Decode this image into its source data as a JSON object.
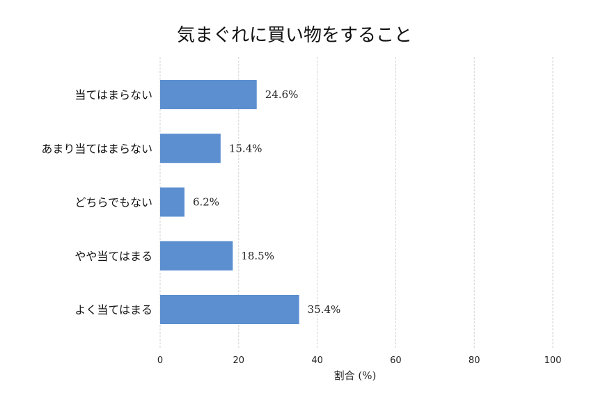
{
  "chart_data": {
    "type": "bar",
    "orientation": "horizontal",
    "title": "気まぐれに買い物をすること",
    "xlabel": "割合 (%)",
    "ylabel": "",
    "categories": [
      "よく当てはまる",
      "やや当てはまる",
      "どちらでもない",
      "あまり当てはまらない",
      "当てはまらない"
    ],
    "values": [
      35.4,
      18.5,
      6.2,
      15.4,
      24.6
    ],
    "value_labels": [
      "35.4%",
      "18.5%",
      "6.2%",
      "15.4%",
      "24.6%"
    ],
    "xlim": [
      0,
      100
    ],
    "xticks": [
      0,
      20,
      40,
      60,
      80,
      100
    ],
    "grid": "vertical-dashed",
    "bar_color": "#5b8fd0",
    "grid_color": "#c8c8c8"
  }
}
